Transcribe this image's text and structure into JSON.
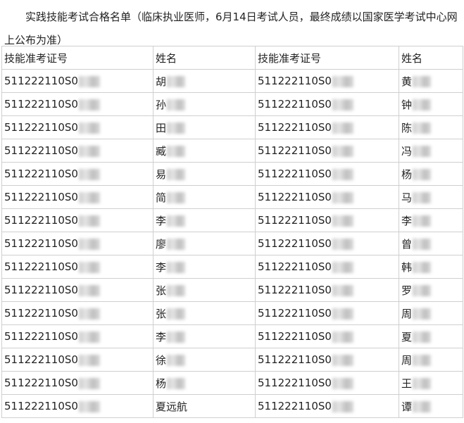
{
  "intro": "实践技能考试合格名单（临床执业医师，6月14日考试人员，最终成绩以国家医学考试中心网上公布为准）",
  "table": {
    "header": [
      "技能准考证号",
      "姓名",
      "技能准考证号",
      "姓名"
    ],
    "rows": [
      [
        "511222110S0",
        "胡",
        "511222110S0",
        "黄"
      ],
      [
        "511222110S0",
        "孙",
        "511222110S0",
        "钟"
      ],
      [
        "511222110S0",
        "田",
        "511222110S0",
        "陈"
      ],
      [
        "511222110S0",
        "臧",
        "511222110S0",
        "冯"
      ],
      [
        "511222110S0",
        "易",
        "511222110S0",
        "杨"
      ],
      [
        "511222110S0",
        "简",
        "511222110S0",
        "马"
      ],
      [
        "511222110S0",
        "李",
        "511222110S0",
        "李"
      ],
      [
        "511222110S0",
        "廖",
        "511222110S0",
        "曾"
      ],
      [
        "511222110S0",
        "李",
        "511222110S0",
        "韩"
      ],
      [
        "511222110S0",
        "张",
        "511222110S0",
        "罗"
      ],
      [
        "511222110S0",
        "张",
        "511222110S0",
        "周"
      ],
      [
        "511222110S0",
        "李",
        "511222110S0",
        "夏"
      ],
      [
        "511222110S0",
        "徐",
        "511222110S0",
        "周"
      ],
      [
        "511222110S0",
        "杨",
        "511222110S0",
        "王"
      ],
      [
        "511222110S0",
        "夏远航",
        "511222110S0",
        "谭"
      ]
    ]
  }
}
